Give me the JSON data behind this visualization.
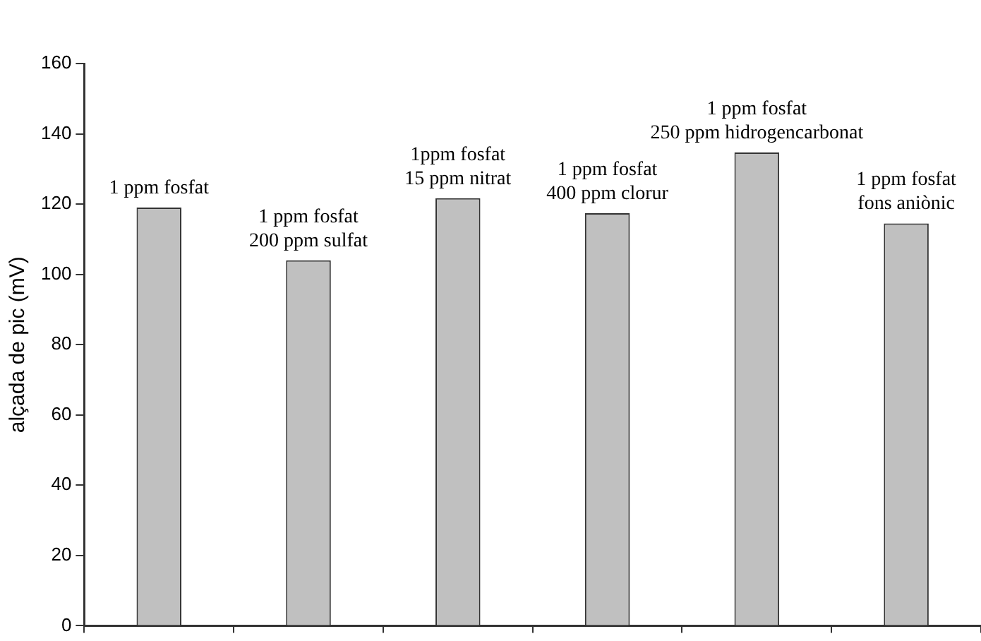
{
  "chart_data": {
    "type": "bar",
    "ylabel": "alçada de pic (mV)",
    "categories": [
      "1 ppm fosfat",
      "1 ppm fosfat\n200 ppm sulfat",
      "1ppm fosfat\n15 ppm nitrat",
      "1 ppm fosfat\n400 ppm clorur",
      "1 ppm fosfat\n250 ppm hidrogencarbonat",
      "1 ppm fosfat\nfons aniònic"
    ],
    "values": [
      119,
      104,
      121.7,
      117.4,
      134.7,
      114.5
    ],
    "color": "#c0c0c0",
    "ylim": [
      0,
      160
    ],
    "yticks": [
      0,
      20,
      40,
      60,
      80,
      100,
      120,
      140,
      160
    ],
    "grid": false,
    "legend": false
  }
}
